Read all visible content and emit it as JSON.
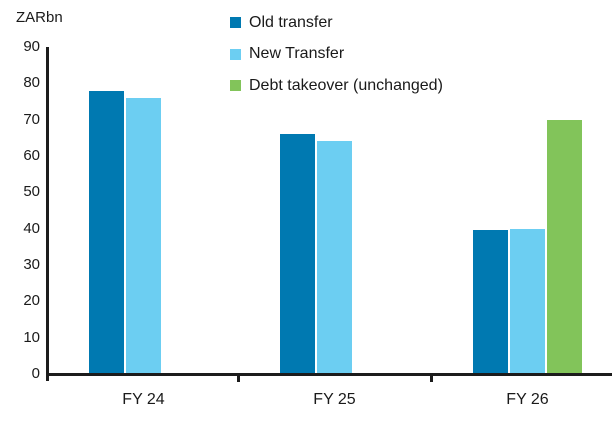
{
  "chart_data": {
    "type": "bar",
    "title": "",
    "ylabel": "ZARbn",
    "xlabel": "",
    "categories": [
      "FY 24",
      "FY 25",
      "FY 26"
    ],
    "series": [
      {
        "name": "Old transfer",
        "color": "#0079b1",
        "values": [
          78,
          66,
          39.5
        ]
      },
      {
        "name": "New Transfer",
        "color": "#6ccef2",
        "values": [
          76,
          64,
          40
        ]
      },
      {
        "name": "Debt takeover (unchanged)",
        "color": "#82c45a",
        "values": [
          null,
          null,
          70
        ]
      }
    ],
    "ylim": [
      0,
      90
    ],
    "yticks": [
      0,
      10,
      20,
      30,
      40,
      50,
      60,
      70,
      80,
      90
    ],
    "grid": false,
    "legend_position": "top-center",
    "axis_color": "#1c1c1c",
    "text_color": "#1a1a1a"
  }
}
